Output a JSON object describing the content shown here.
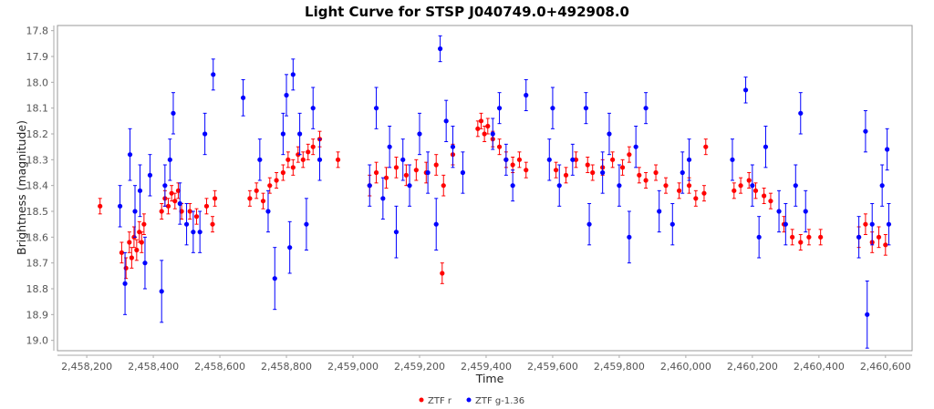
{
  "chart_data": {
    "type": "scatter",
    "title": "Light Curve for STSP J040749.0+492908.0",
    "xlabel": "Time",
    "ylabel": "Brightness (magnitude)",
    "xlim": [
      2458112,
      2460680
    ],
    "ylim": [
      17.78,
      19.04
    ],
    "y_inverted": true,
    "grid": false,
    "legend_position": "bottom-center",
    "xticks": [
      2458200,
      2458400,
      2458600,
      2458800,
      2459000,
      2459200,
      2459400,
      2459600,
      2459800,
      2460000,
      2460200,
      2460400,
      2460600
    ],
    "xtick_labels": [
      "2,458,200",
      "2,458,400",
      "2,458,600",
      "2,458,800",
      "2,459,000",
      "2,459,200",
      "2,459,400",
      "2,459,600",
      "2,459,800",
      "2,460,000",
      "2,460,200",
      "2,460,400",
      "2,460,600"
    ],
    "yticks": [
      17.8,
      17.9,
      18.0,
      18.1,
      18.2,
      18.3,
      18.4,
      18.5,
      18.6,
      18.7,
      18.8,
      18.9,
      19.0
    ],
    "ytick_labels": [
      "17.8",
      "17.9",
      "18.0",
      "18.1",
      "18.2",
      "18.3",
      "18.4",
      "18.5",
      "18.6",
      "18.7",
      "18.8",
      "18.9",
      "19.0"
    ],
    "series": [
      {
        "name": "ZTF r",
        "color": "#ff0000",
        "points_format": "[time, magnitude, error]",
        "points": [
          [
            2458240,
            18.48,
            0.03
          ],
          [
            2458305,
            18.66,
            0.04
          ],
          [
            2458318,
            18.72,
            0.04
          ],
          [
            2458328,
            18.62,
            0.04
          ],
          [
            2458335,
            18.68,
            0.04
          ],
          [
            2458342,
            18.6,
            0.04
          ],
          [
            2458350,
            18.65,
            0.04
          ],
          [
            2458358,
            18.58,
            0.04
          ],
          [
            2458365,
            18.62,
            0.04
          ],
          [
            2458372,
            18.55,
            0.04
          ],
          [
            2458425,
            18.5,
            0.03
          ],
          [
            2458435,
            18.45,
            0.03
          ],
          [
            2458445,
            18.48,
            0.03
          ],
          [
            2458455,
            18.43,
            0.03
          ],
          [
            2458465,
            18.46,
            0.03
          ],
          [
            2458475,
            18.42,
            0.03
          ],
          [
            2458485,
            18.5,
            0.03
          ],
          [
            2458510,
            18.5,
            0.03
          ],
          [
            2458530,
            18.52,
            0.03
          ],
          [
            2458560,
            18.48,
            0.03
          ],
          [
            2458578,
            18.55,
            0.03
          ],
          [
            2458585,
            18.45,
            0.03
          ],
          [
            2458690,
            18.45,
            0.03
          ],
          [
            2458710,
            18.42,
            0.03
          ],
          [
            2458730,
            18.46,
            0.03
          ],
          [
            2458750,
            18.4,
            0.03
          ],
          [
            2458770,
            18.38,
            0.03
          ],
          [
            2458790,
            18.35,
            0.03
          ],
          [
            2458805,
            18.3,
            0.03
          ],
          [
            2458820,
            18.33,
            0.03
          ],
          [
            2458835,
            18.28,
            0.03
          ],
          [
            2458850,
            18.3,
            0.03
          ],
          [
            2458865,
            18.27,
            0.03
          ],
          [
            2458880,
            18.25,
            0.03
          ],
          [
            2458900,
            18.22,
            0.03
          ],
          [
            2458955,
            18.3,
            0.03
          ],
          [
            2459050,
            18.4,
            0.04
          ],
          [
            2459070,
            18.35,
            0.04
          ],
          [
            2459100,
            18.37,
            0.04
          ],
          [
            2459130,
            18.33,
            0.04
          ],
          [
            2459160,
            18.36,
            0.04
          ],
          [
            2459190,
            18.34,
            0.04
          ],
          [
            2459220,
            18.35,
            0.04
          ],
          [
            2459250,
            18.32,
            0.04
          ],
          [
            2459268,
            18.74,
            0.04
          ],
          [
            2459272,
            18.4,
            0.04
          ],
          [
            2459300,
            18.28,
            0.04
          ],
          [
            2459375,
            18.18,
            0.03
          ],
          [
            2459385,
            18.15,
            0.03
          ],
          [
            2459395,
            18.2,
            0.03
          ],
          [
            2459405,
            18.17,
            0.03
          ],
          [
            2459420,
            18.22,
            0.03
          ],
          [
            2459440,
            18.25,
            0.03
          ],
          [
            2459460,
            18.3,
            0.03
          ],
          [
            2459480,
            18.32,
            0.03
          ],
          [
            2459500,
            18.3,
            0.03
          ],
          [
            2459520,
            18.34,
            0.03
          ],
          [
            2459610,
            18.34,
            0.03
          ],
          [
            2459640,
            18.36,
            0.03
          ],
          [
            2459670,
            18.3,
            0.03
          ],
          [
            2459705,
            18.32,
            0.03
          ],
          [
            2459720,
            18.35,
            0.03
          ],
          [
            2459750,
            18.33,
            0.03
          ],
          [
            2459780,
            18.3,
            0.03
          ],
          [
            2459810,
            18.33,
            0.03
          ],
          [
            2459830,
            18.28,
            0.03
          ],
          [
            2459860,
            18.36,
            0.03
          ],
          [
            2459880,
            18.38,
            0.03
          ],
          [
            2459910,
            18.35,
            0.03
          ],
          [
            2459940,
            18.4,
            0.03
          ],
          [
            2459980,
            18.42,
            0.03
          ],
          [
            2460010,
            18.4,
            0.03
          ],
          [
            2460030,
            18.45,
            0.03
          ],
          [
            2460055,
            18.43,
            0.03
          ],
          [
            2460060,
            18.25,
            0.03
          ],
          [
            2460145,
            18.42,
            0.03
          ],
          [
            2460165,
            18.4,
            0.03
          ],
          [
            2460190,
            18.38,
            0.03
          ],
          [
            2460210,
            18.42,
            0.03
          ],
          [
            2460235,
            18.44,
            0.03
          ],
          [
            2460255,
            18.46,
            0.03
          ],
          [
            2460295,
            18.55,
            0.03
          ],
          [
            2460320,
            18.6,
            0.03
          ],
          [
            2460345,
            18.62,
            0.03
          ],
          [
            2460370,
            18.6,
            0.03
          ],
          [
            2460405,
            18.6,
            0.03
          ],
          [
            2460520,
            18.6,
            0.04
          ],
          [
            2460540,
            18.55,
            0.04
          ],
          [
            2460560,
            18.62,
            0.04
          ],
          [
            2460580,
            18.6,
            0.04
          ],
          [
            2460600,
            18.63,
            0.04
          ]
        ]
      },
      {
        "name": "ZTF g-1.36",
        "color": "#0000ff",
        "points_format": "[time, magnitude, error]",
        "points": [
          [
            2458300,
            18.48,
            0.08
          ],
          [
            2458315,
            18.78,
            0.12
          ],
          [
            2458330,
            18.28,
            0.1
          ],
          [
            2458345,
            18.5,
            0.1
          ],
          [
            2458360,
            18.42,
            0.1
          ],
          [
            2458375,
            18.7,
            0.1
          ],
          [
            2458390,
            18.36,
            0.08
          ],
          [
            2458425,
            18.81,
            0.12
          ],
          [
            2458435,
            18.4,
            0.08
          ],
          [
            2458450,
            18.3,
            0.08
          ],
          [
            2458460,
            18.12,
            0.08
          ],
          [
            2458480,
            18.47,
            0.08
          ],
          [
            2458500,
            18.55,
            0.08
          ],
          [
            2458520,
            18.58,
            0.08
          ],
          [
            2458540,
            18.58,
            0.08
          ],
          [
            2458555,
            18.2,
            0.08
          ],
          [
            2458580,
            17.97,
            0.06
          ],
          [
            2458670,
            18.06,
            0.07
          ],
          [
            2458720,
            18.3,
            0.08
          ],
          [
            2458745,
            18.5,
            0.08
          ],
          [
            2458765,
            18.76,
            0.12
          ],
          [
            2458790,
            18.2,
            0.08
          ],
          [
            2458800,
            18.05,
            0.08
          ],
          [
            2458810,
            18.64,
            0.1
          ],
          [
            2458820,
            17.97,
            0.06
          ],
          [
            2458840,
            18.2,
            0.08
          ],
          [
            2458860,
            18.55,
            0.1
          ],
          [
            2458880,
            18.1,
            0.08
          ],
          [
            2458900,
            18.3,
            0.08
          ],
          [
            2459050,
            18.4,
            0.08
          ],
          [
            2459070,
            18.1,
            0.08
          ],
          [
            2459090,
            18.45,
            0.08
          ],
          [
            2459110,
            18.25,
            0.08
          ],
          [
            2459130,
            18.58,
            0.1
          ],
          [
            2459150,
            18.3,
            0.08
          ],
          [
            2459170,
            18.4,
            0.08
          ],
          [
            2459200,
            18.2,
            0.08
          ],
          [
            2459225,
            18.35,
            0.08
          ],
          [
            2459250,
            18.55,
            0.1
          ],
          [
            2459262,
            17.87,
            0.05
          ],
          [
            2459280,
            18.15,
            0.08
          ],
          [
            2459300,
            18.25,
            0.08
          ],
          [
            2459330,
            18.35,
            0.08
          ],
          [
            2459420,
            18.2,
            0.06
          ],
          [
            2459440,
            18.1,
            0.06
          ],
          [
            2459460,
            18.3,
            0.06
          ],
          [
            2459480,
            18.4,
            0.06
          ],
          [
            2459520,
            18.05,
            0.06
          ],
          [
            2459590,
            18.3,
            0.08
          ],
          [
            2459600,
            18.1,
            0.08
          ],
          [
            2459620,
            18.4,
            0.08
          ],
          [
            2459660,
            18.3,
            0.06
          ],
          [
            2459700,
            18.1,
            0.06
          ],
          [
            2459710,
            18.55,
            0.08
          ],
          [
            2459750,
            18.35,
            0.08
          ],
          [
            2459770,
            18.2,
            0.08
          ],
          [
            2459800,
            18.4,
            0.08
          ],
          [
            2459830,
            18.6,
            0.1
          ],
          [
            2459850,
            18.25,
            0.08
          ],
          [
            2459880,
            18.1,
            0.06
          ],
          [
            2459920,
            18.5,
            0.08
          ],
          [
            2459960,
            18.55,
            0.08
          ],
          [
            2459990,
            18.35,
            0.08
          ],
          [
            2460010,
            18.3,
            0.08
          ],
          [
            2460140,
            18.3,
            0.08
          ],
          [
            2460180,
            18.03,
            0.05
          ],
          [
            2460200,
            18.4,
            0.08
          ],
          [
            2460220,
            18.6,
            0.08
          ],
          [
            2460240,
            18.25,
            0.08
          ],
          [
            2460280,
            18.5,
            0.08
          ],
          [
            2460300,
            18.55,
            0.08
          ],
          [
            2460330,
            18.4,
            0.08
          ],
          [
            2460345,
            18.12,
            0.08
          ],
          [
            2460360,
            18.5,
            0.08
          ],
          [
            2460520,
            18.6,
            0.08
          ],
          [
            2460540,
            18.19,
            0.08
          ],
          [
            2460545,
            18.9,
            0.13
          ],
          [
            2460560,
            18.55,
            0.08
          ],
          [
            2460590,
            18.4,
            0.08
          ],
          [
            2460605,
            18.26,
            0.08
          ],
          [
            2460610,
            18.55,
            0.08
          ]
        ]
      }
    ]
  }
}
